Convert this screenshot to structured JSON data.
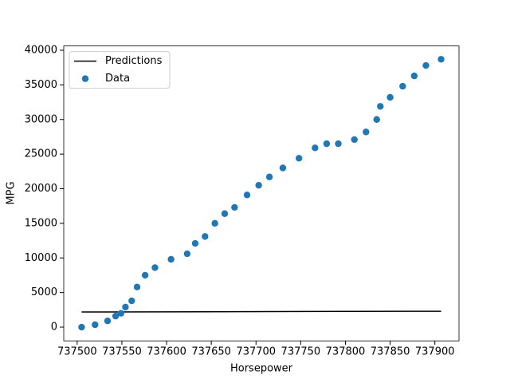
{
  "chart_data": {
    "type": "scatter",
    "xlabel": "Horsepower",
    "ylabel": "MPG",
    "xlim": [
      737485,
      737927
    ],
    "ylim": [
      -1980,
      40622
    ],
    "xticks": [
      737500,
      737550,
      737600,
      737650,
      737700,
      737750,
      737800,
      737850,
      737900
    ],
    "yticks": [
      0,
      5000,
      10000,
      15000,
      20000,
      25000,
      30000,
      35000,
      40000
    ],
    "legend": "upper left",
    "series": [
      {
        "name": "Predictions",
        "type": "line",
        "color": "#000000",
        "x": [
          737505,
          737907
        ],
        "values": [
          2190,
          2300
        ]
      },
      {
        "name": "Data",
        "type": "scatter",
        "color": "#1f77b4",
        "x": [
          737505,
          737520,
          737534,
          737543,
          737549,
          737554,
          737561,
          737567,
          737576,
          737587,
          737605,
          737623,
          737632,
          737643,
          737654,
          737665,
          737676,
          737690,
          737703,
          737715,
          737730,
          737748,
          737766,
          737779,
          737792,
          737810,
          737823,
          737835,
          737839,
          737850,
          737864,
          737877,
          737890,
          737907
        ],
        "values": [
          0,
          350,
          900,
          1600,
          2000,
          2900,
          3800,
          5800,
          7500,
          8600,
          9800,
          10600,
          12100,
          13100,
          15000,
          16400,
          17300,
          19100,
          20500,
          21700,
          23000,
          24400,
          25900,
          26500,
          26500,
          27100,
          28200,
          30000,
          31900,
          33200,
          34800,
          36300,
          37800,
          38700
        ]
      }
    ]
  }
}
